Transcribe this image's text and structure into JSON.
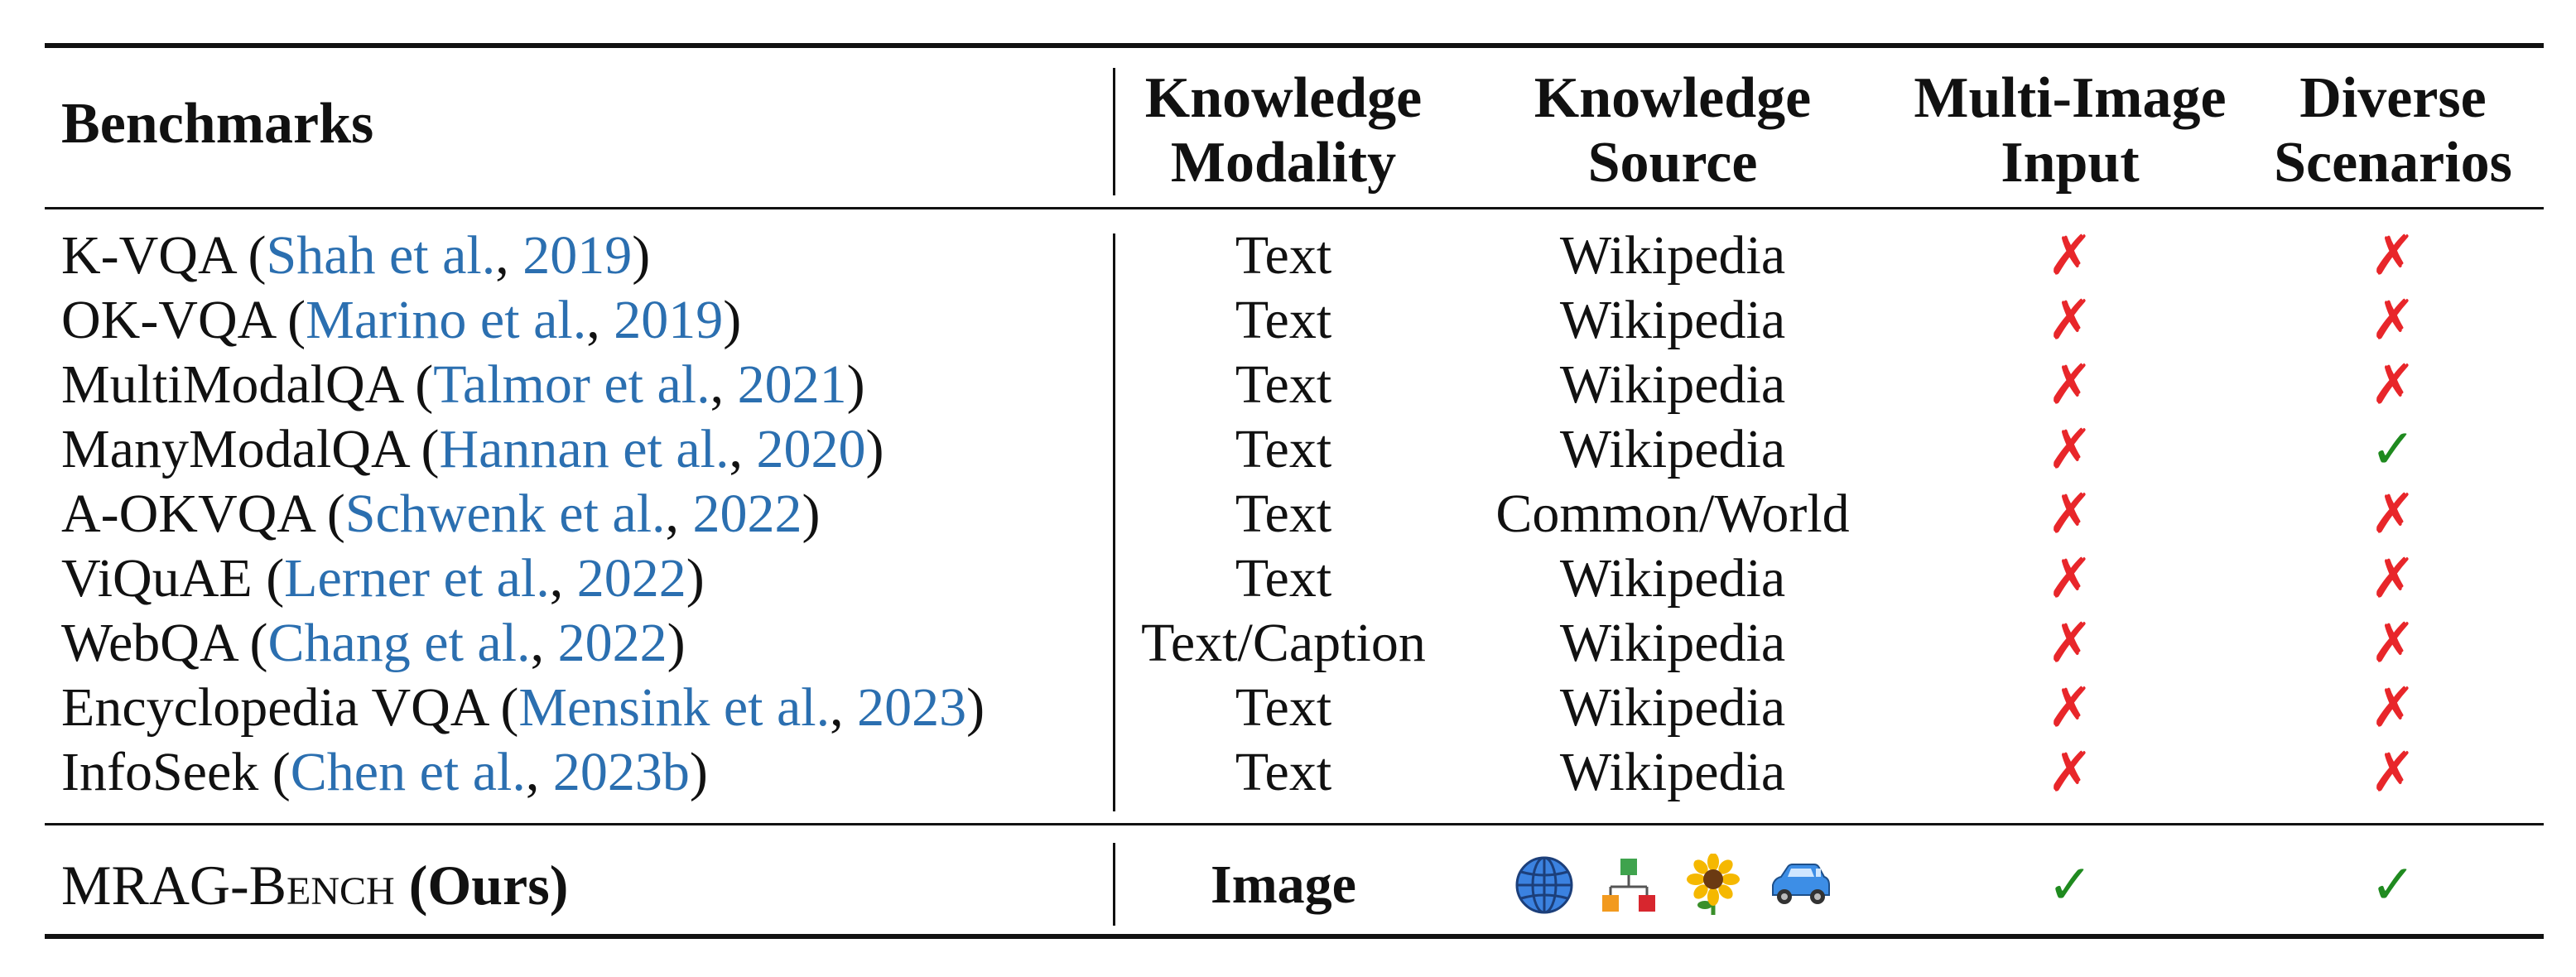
{
  "header": {
    "benchmarks": "Benchmarks",
    "knowledge_modality": [
      "Knowledge",
      "Modality"
    ],
    "knowledge_source": [
      "Knowledge",
      "Source"
    ],
    "multi_image_input": [
      "Multi-Image",
      "Input"
    ],
    "diverse_scenarios": [
      "Diverse",
      "Scenarios"
    ]
  },
  "rows": [
    {
      "name": "K-VQA",
      "open": " (",
      "author": "Shah et al.",
      "sep": ", ",
      "year": "2019",
      "close": ")",
      "modality": "Text",
      "source": "Wikipedia",
      "multi_image": "✗",
      "diverse": "✗"
    },
    {
      "name": "OK-VQA",
      "open": " (",
      "author": "Marino et al.",
      "sep": ", ",
      "year": "2019",
      "close": ")",
      "modality": "Text",
      "source": "Wikipedia",
      "multi_image": "✗",
      "diverse": "✗"
    },
    {
      "name": "MultiModalQA",
      "open": " (",
      "author": "Talmor et al.",
      "sep": ", ",
      "year": "2021",
      "close": ")",
      "modality": "Text",
      "source": "Wikipedia",
      "multi_image": "✗",
      "diverse": "✗"
    },
    {
      "name": "ManyModalQA",
      "open": " (",
      "author": "Hannan et al.",
      "sep": ", ",
      "year": "2020",
      "close": ")",
      "modality": "Text",
      "source": "Wikipedia",
      "multi_image": "✗",
      "diverse": "✓"
    },
    {
      "name": "A-OKVQA",
      "open": " (",
      "author": "Schwenk et al.",
      "sep": ", ",
      "year": "2022",
      "close": ")",
      "modality": "Text",
      "source": "Common/World",
      "multi_image": "✗",
      "diverse": "✗"
    },
    {
      "name": "ViQuAE",
      "open": " (",
      "author": "Lerner et al.",
      "sep": ", ",
      "year": "2022",
      "close": ")",
      "modality": "Text",
      "source": "Wikipedia",
      "multi_image": "✗",
      "diverse": "✗"
    },
    {
      "name": "WebQA",
      "open": " (",
      "author": "Chang et al.",
      "sep": ", ",
      "year": "2022",
      "close": ")",
      "modality": "Text/Caption",
      "source": "Wikipedia",
      "multi_image": "✗",
      "diverse": "✗"
    },
    {
      "name": "Encyclopedia VQA",
      "open": " (",
      "author": "Mensink et al.",
      "sep": ", ",
      "year": "2023",
      "close": ")",
      "modality": "Text",
      "source": "Wikipedia",
      "multi_image": "✗",
      "diverse": "✗"
    },
    {
      "name": "InfoSeek",
      "open": " (",
      "author": "Chen et al.",
      "sep": ", ",
      "year": "2023b",
      "close": ")",
      "modality": "Text",
      "source": "Wikipedia",
      "multi_image": "✗",
      "diverse": "✗"
    }
  ],
  "ours": {
    "name": "MRAG-Bench",
    "suffix": " (Ours)",
    "modality": "Image",
    "source_icons": [
      "globe-icon",
      "hierarchy-icon",
      "sunflower-icon",
      "car-icon"
    ],
    "multi_image": "✓",
    "diverse": "✓"
  },
  "colors": {
    "citation": "#2b6fb0",
    "cross": "#e8262a",
    "check": "#1f8a1f"
  }
}
